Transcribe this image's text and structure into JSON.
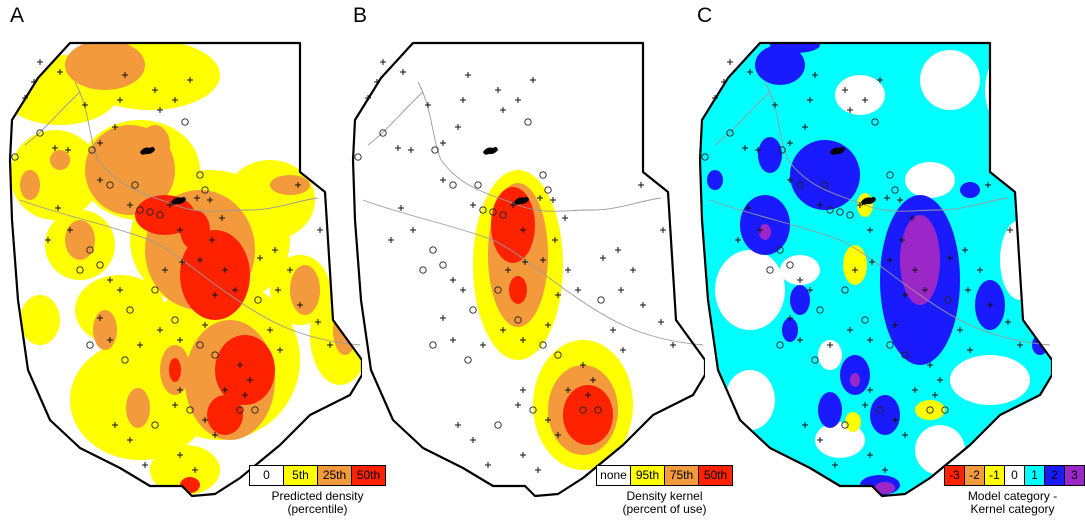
{
  "panels": [
    {
      "letter": "A",
      "legend": {
        "labels": [
          "0",
          "5th",
          "25th",
          "50th"
        ],
        "colors": [
          "#ffffff",
          "#ffff00",
          "#f39a3c",
          "#ff2200"
        ],
        "caption_line1": "Predicted density",
        "caption_line2": "(percentile)"
      }
    },
    {
      "letter": "B",
      "legend": {
        "labels": [
          "none",
          "95th",
          "75th",
          "50th"
        ],
        "colors": [
          "#ffffff",
          "#ffff00",
          "#f39a3c",
          "#ff2200"
        ],
        "caption_line1": "Density kernel",
        "caption_line2": "(percent of use)"
      }
    },
    {
      "letter": "C",
      "legend": {
        "labels": [
          "-3",
          "-2",
          "-1",
          "0",
          "1",
          "2",
          "3"
        ],
        "colors": [
          "#ff2200",
          "#f39a3c",
          "#ffff00",
          "#ffffff",
          "#00ffff",
          "#1a1aff",
          "#9b27c9"
        ],
        "caption_line1": "Model category -",
        "caption_line2": "Kernel category"
      }
    }
  ]
}
